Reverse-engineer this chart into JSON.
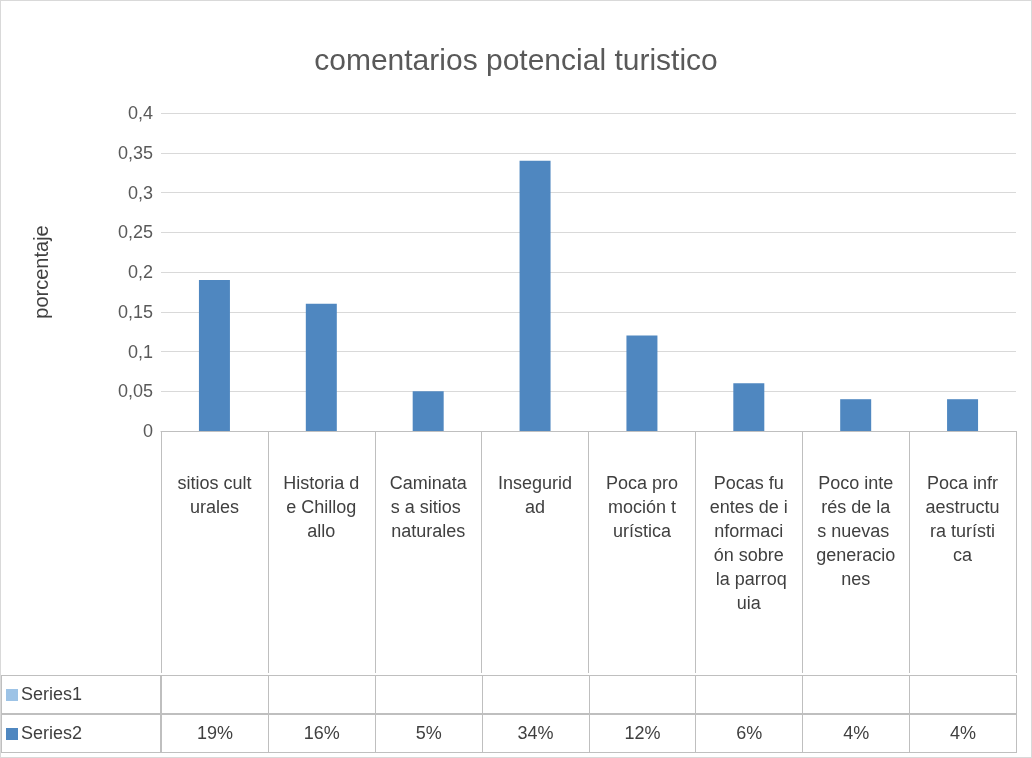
{
  "chart_data": {
    "type": "bar",
    "title": "comentarios potencial turistico",
    "ylabel": "porcentaje",
    "categories": [
      "sitios culturales",
      "Historia de Chillogallo",
      "Caminatas a sitios naturales",
      "Inseguridad",
      "Poca promoción turística",
      "Pocas fuentes de información sobre la parroquia",
      "Poco interés de las nuevas generaciones",
      "Poca infraestructura turística"
    ],
    "series": [
      {
        "name": "Series1",
        "color": "#9dc3e6",
        "values": [
          null,
          null,
          null,
          null,
          null,
          null,
          null,
          null
        ],
        "value_labels": [
          null,
          null,
          null,
          null,
          null,
          null,
          null,
          null
        ]
      },
      {
        "name": "Series2",
        "color": "#4f87c0",
        "values": [
          0.19,
          0.16,
          0.05,
          0.34,
          0.12,
          0.06,
          0.04,
          0.04
        ],
        "value_labels": [
          "19%",
          "16%",
          "5%",
          "34%",
          "12%",
          "6%",
          "4%",
          "4%"
        ]
      }
    ],
    "ylim": [
      0,
      0.4
    ],
    "yticks": [
      0,
      {
        "value": 0.05,
        "label": "0,05"
      },
      {
        "value": 0.1,
        "label": "0,1"
      },
      {
        "value": 0.15,
        "label": "0,15"
      },
      {
        "value": 0.2,
        "label": "0,2"
      },
      {
        "value": 0.25,
        "label": "0,25"
      },
      {
        "value": 0.3,
        "label": "0,3"
      },
      {
        "value": 0.35,
        "label": "0,35"
      },
      {
        "value": 0.4,
        "label": "0,4"
      }
    ],
    "grid": true,
    "legend": "bottom"
  }
}
